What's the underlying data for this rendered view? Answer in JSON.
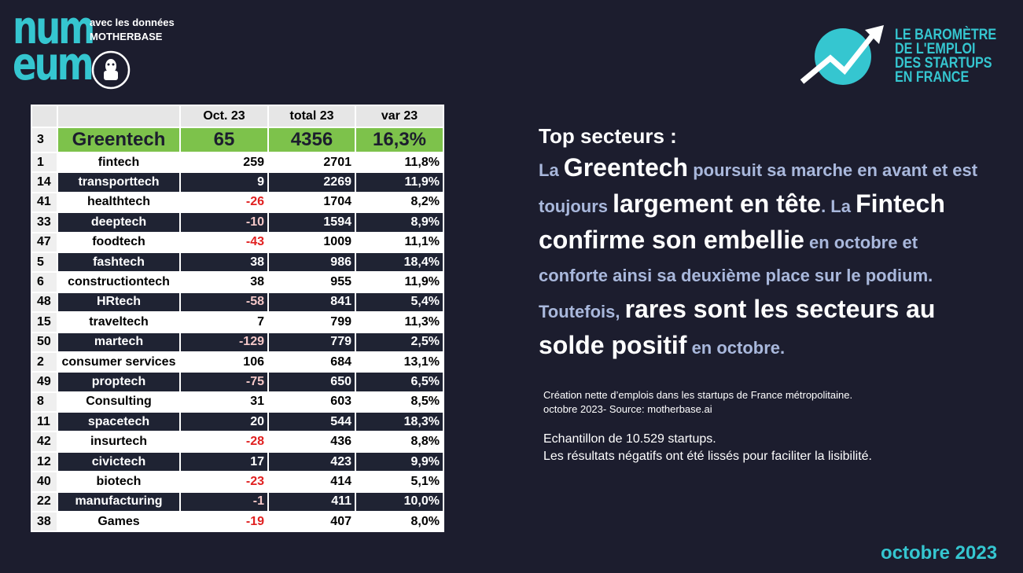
{
  "header": {
    "logo_lines": [
      "num",
      "eum"
    ],
    "partner_lines": [
      "avec les données",
      "MOTHERBASE"
    ],
    "barometer_lines": [
      "LE BAROMÈTRE",
      "DE L'EMPLOI",
      "DES STARTUPS",
      "EN FRANCE"
    ]
  },
  "table": {
    "columns": [
      "Oct. 23",
      "total 23",
      "var 23"
    ],
    "rows": [
      [
        3,
        "Greentech",
        65,
        4356,
        "16,3%"
      ],
      [
        1,
        "fintech",
        259,
        2701,
        "11,8%"
      ],
      [
        14,
        "transporttech",
        9,
        2269,
        "11,9%"
      ],
      [
        41,
        "healthtech",
        -26,
        1704,
        "8,2%"
      ],
      [
        33,
        "deeptech",
        -10,
        1594,
        "8,9%"
      ],
      [
        47,
        "foodtech",
        -43,
        1009,
        "11,1%"
      ],
      [
        5,
        "fashtech",
        38,
        986,
        "18,4%"
      ],
      [
        6,
        "constructiontech",
        38,
        955,
        "11,9%"
      ],
      [
        48,
        "HRtech",
        -58,
        841,
        "5,4%"
      ],
      [
        15,
        "traveltech",
        7,
        799,
        "11,3%"
      ],
      [
        50,
        "martech",
        -129,
        779,
        "2,5%"
      ],
      [
        2,
        "consumer services",
        106,
        684,
        "13,1%"
      ],
      [
        49,
        "proptech",
        -75,
        650,
        "6,5%"
      ],
      [
        8,
        "Consulting",
        31,
        603,
        "8,5%"
      ],
      [
        11,
        "spacetech",
        20,
        544,
        "18,3%"
      ],
      [
        42,
        "insurtech",
        -28,
        436,
        "8,8%"
      ],
      [
        12,
        "civictech",
        17,
        423,
        "9,9%"
      ],
      [
        40,
        "biotech",
        -23,
        414,
        "5,1%"
      ],
      [
        22,
        "manufacturing",
        -1,
        411,
        "10,0%"
      ],
      [
        38,
        "Games",
        -19,
        407,
        "8,0%"
      ]
    ]
  },
  "text": {
    "heading": "Top secteurs :",
    "segments": [
      "La ",
      "Greentech",
      " poursuit sa marche en avant et est toujours ",
      "largement en tête",
      ". La ",
      "Fintech confirme son embellie",
      " en octobre et conforte ainsi sa deuxième place sur le podium. Toutefois, ",
      "rares sont les secteurs au solde positif",
      " en octobre."
    ],
    "notes": [
      "Création nette d’emplois dans les startups de France métropolitaine.",
      "octobre 2023- Source: motherbase.ai"
    ],
    "sample": [
      "Echantillon de 10.529 startups.",
      "Les résultats négatifs ont été lissés pour faciliter la lisibilité."
    ]
  },
  "footer": {
    "date": "octobre  2023"
  }
}
